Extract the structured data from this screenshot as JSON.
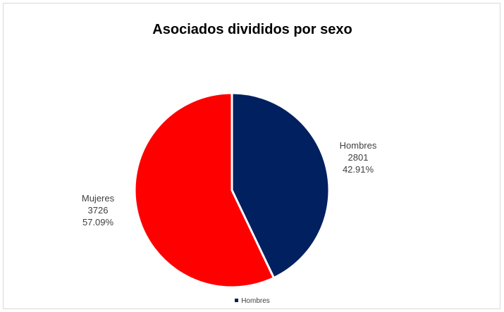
{
  "chart_data": {
    "type": "pie",
    "title": "Asociados divididos por sexo",
    "slices": [
      {
        "name": "Hombres",
        "value": 2801,
        "percent": "42.91%",
        "color": "#002060"
      },
      {
        "name": "Mujeres",
        "value": 3726,
        "percent": "57.09%",
        "color": "#ff0000"
      }
    ],
    "legend": {
      "placement": "bottom",
      "entries": [
        {
          "label": "Hombres",
          "color": "#002060"
        }
      ]
    }
  }
}
